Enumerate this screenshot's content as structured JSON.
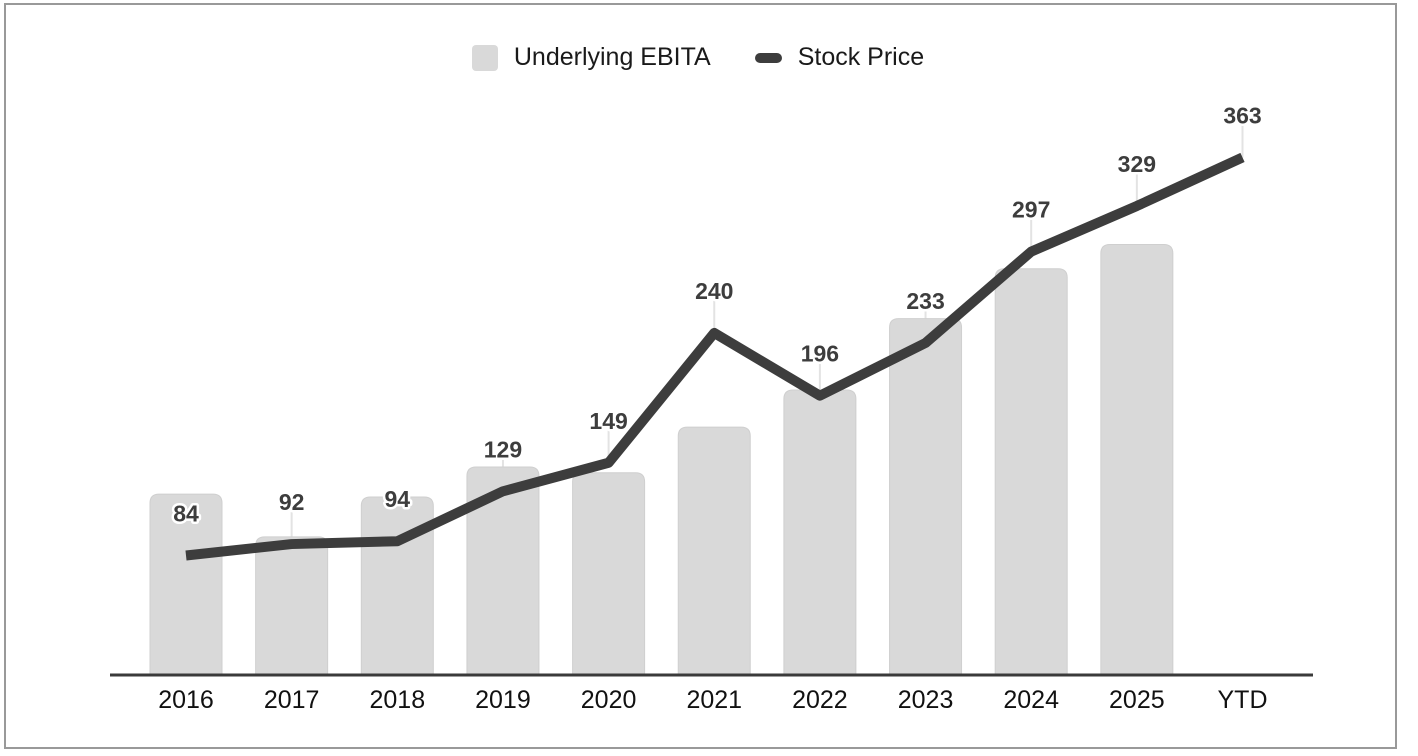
{
  "legend": {
    "position": "top-center",
    "items": [
      {
        "label": "Underlying EBITA",
        "swatch": "bar-swatch",
        "swatch_color": "#d9d9d9"
      },
      {
        "label": "Stock Price",
        "swatch": "line-swatch",
        "swatch_color": "#3d3d3d"
      }
    ]
  },
  "chart_data": {
    "type": "combo_bar_line",
    "title": "",
    "xlabel": "",
    "ylabel": "",
    "grid": false,
    "y_axis_shown": false,
    "x_axis_shown": true,
    "legend_position": "top-center",
    "categories": [
      "2016",
      "2017",
      "2018",
      "2019",
      "2020",
      "2021",
      "2022",
      "2023",
      "2024",
      "2025",
      "YTD"
    ],
    "series": [
      {
        "name": "Underlying EBITA",
        "type": "bar",
        "color": "#d9d9d9",
        "data_labels_shown": false,
        "values_estimated": true,
        "values": [
          127,
          97,
          125,
          146,
          142,
          174,
          200,
          250,
          285,
          302,
          null
        ]
      },
      {
        "name": "Stock Price",
        "type": "line",
        "color": "#3d3d3d",
        "data_labels_shown": true,
        "values_estimated": false,
        "values": [
          84,
          92,
          94,
          129,
          149,
          240,
          196,
          233,
          297,
          329,
          363
        ]
      }
    ],
    "colors": {
      "background": "#ffffff",
      "frame_border": "#999999",
      "axis": "#3a3a3a",
      "tick_label": "#111111",
      "data_label": "#3d3d3d",
      "data_label_halo": "#ffffff",
      "leader_line": "#e3e3e3",
      "bar_border": "#cfcfcf"
    }
  }
}
